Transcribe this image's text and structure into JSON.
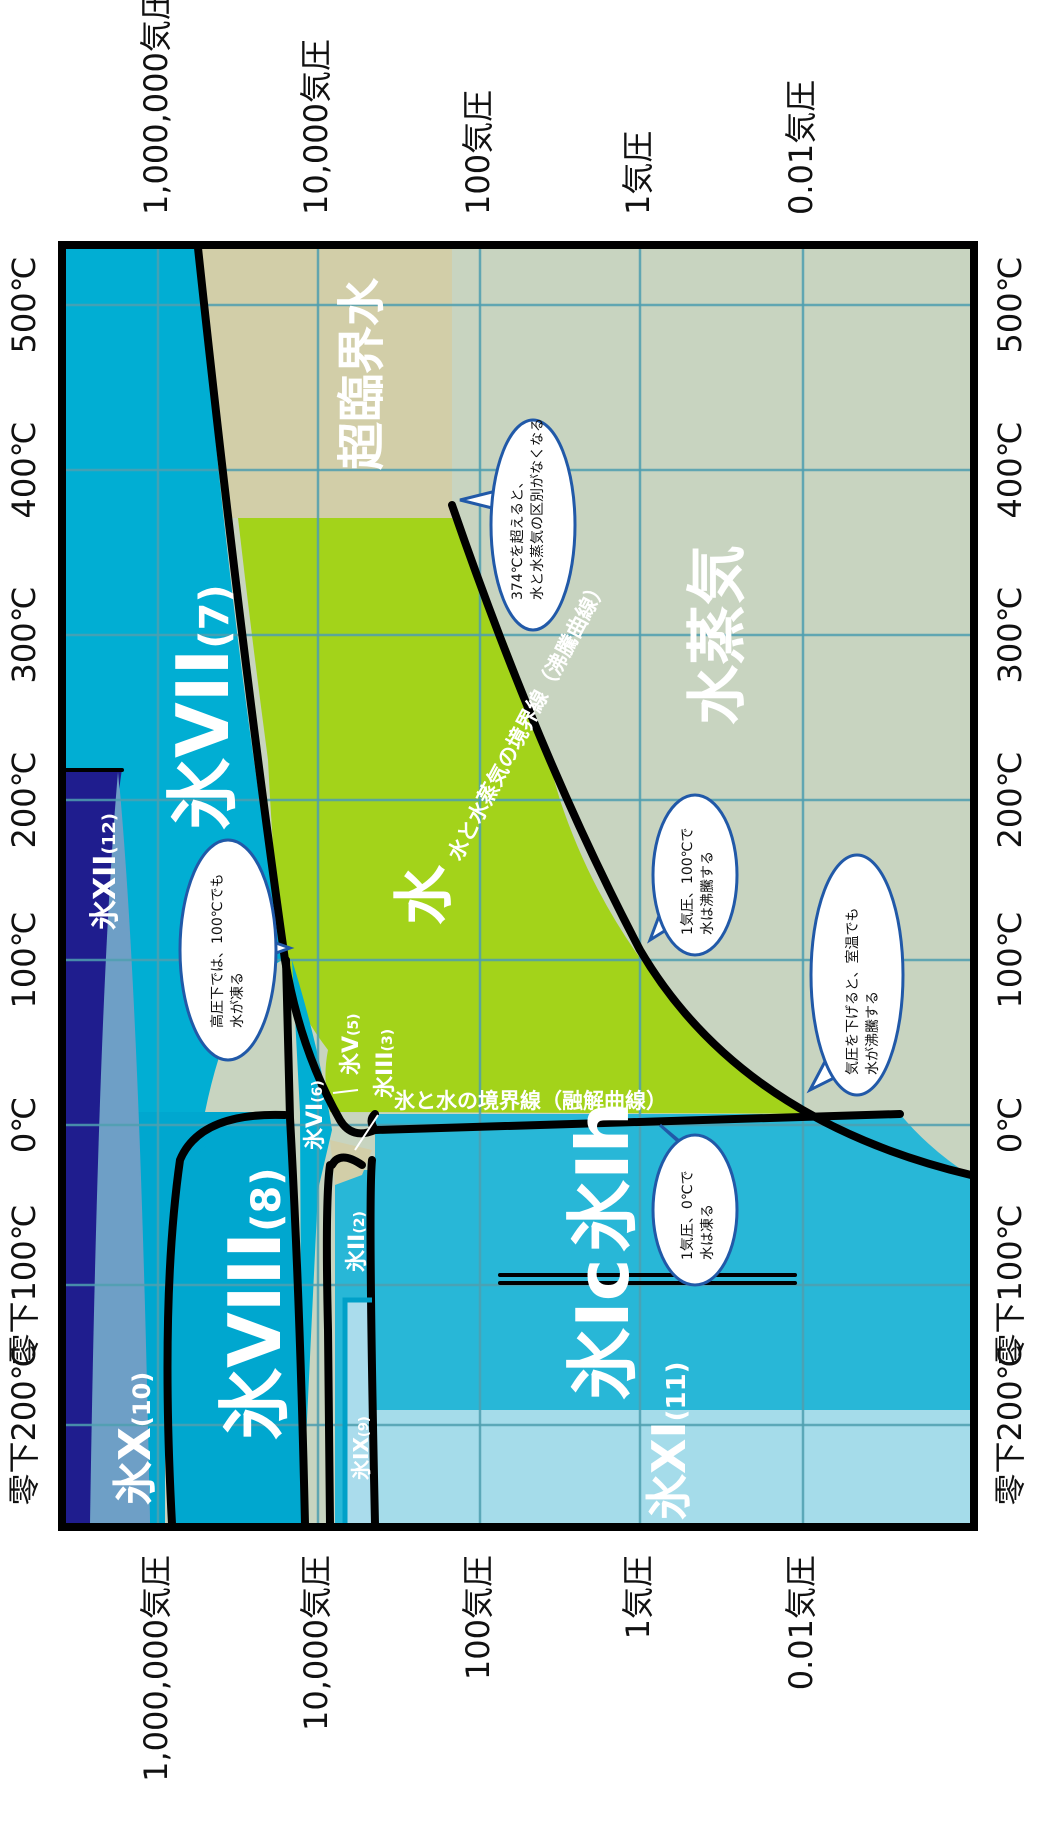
{
  "colors": {
    "ice_x": "#1f1d8e",
    "ice_x_light": "#6e9fc6",
    "ice_viii": "#00a7cf",
    "ice_vii": "#01aed3",
    "ice_ih": "#28b7d7",
    "ice_xi": "#a5dcea",
    "ice_ix": "#aadcec",
    "water": "#a3d31a",
    "vapor": "#c8d4c0",
    "supercritical": "#d2cea8",
    "grid": "#4f9fb0",
    "callout_stroke": "#2159a8"
  },
  "axes": {
    "temperature_ticks": [
      "零下200℃",
      "零下100℃",
      "0℃",
      "100℃",
      "200℃",
      "300℃",
      "400℃",
      "500℃"
    ],
    "pressure_ticks": [
      "1,000,000気圧",
      "10,000気圧",
      "100気圧",
      "1気圧",
      "0.01気圧"
    ]
  },
  "regions": {
    "ice_x": {
      "name": "氷X",
      "sub": "(10)"
    },
    "ice_xii": {
      "name": "氷XII",
      "sub": "(12)"
    },
    "ice_viii": {
      "name": "氷VIII",
      "sub": "(8)"
    },
    "ice_vii": {
      "name": "氷VII",
      "sub": "(7)"
    },
    "ice_vi": {
      "name": "氷VI",
      "sub": "(6)"
    },
    "ice_v": {
      "name": "氷V",
      "sub": "(5)"
    },
    "ice_iii": {
      "name": "氷III",
      "sub": "(3)"
    },
    "ice_ii": {
      "name": "氷II",
      "sub": "(2)"
    },
    "ice_ix": {
      "name": "氷IX",
      "sub": "(9)"
    },
    "ice_ih": {
      "name": "氷Ih"
    },
    "ice_ic": {
      "name": "氷Ic"
    },
    "ice_xi": {
      "name": "氷XI",
      "sub": "(11)"
    },
    "water": {
      "name": "水"
    },
    "vapor": {
      "name": "水蒸気"
    },
    "supercritical": {
      "name": "超臨界水"
    }
  },
  "curve_labels": {
    "boiling": "水と水蒸気の境界線（沸騰曲線）",
    "melting": "氷と水の境界線（融解曲線）"
  },
  "callouts": {
    "critical": [
      "374℃を超えると、",
      "水と水蒸気の区別がなくなる"
    ],
    "high_pressure": [
      "高圧下では、100℃でも",
      "水が凍る"
    ],
    "boil_1atm": [
      "1気圧、100℃で",
      "水は沸騰する"
    ],
    "freeze_1atm": [
      "1気圧、0℃で",
      "水は凍る"
    ],
    "low_pressure": [
      "気圧を下げると、室温でも",
      "水が沸騰する"
    ]
  }
}
